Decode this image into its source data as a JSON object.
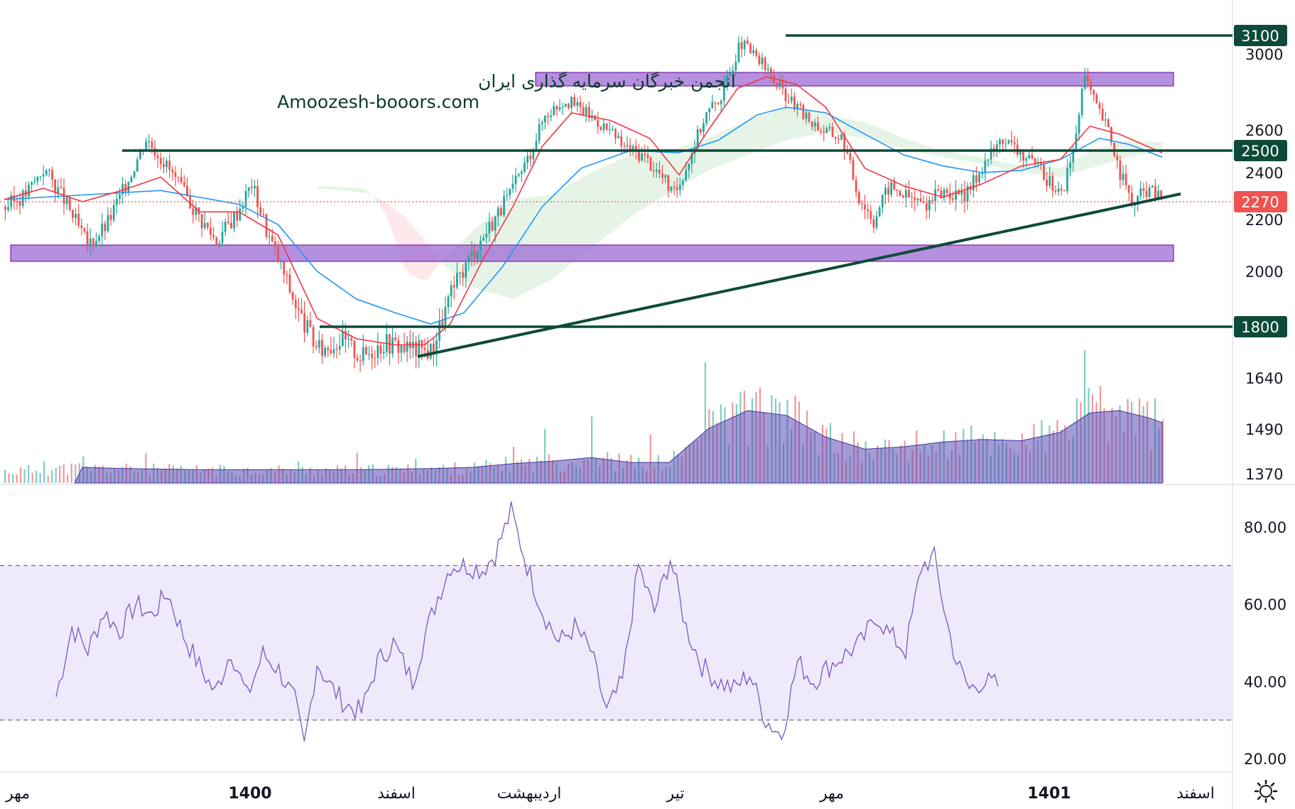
{
  "watermark": {
    "line1": "انجمن خبرگان سرمایه گذاری ایران",
    "line2": "Amoozesh-booors.com"
  },
  "colors": {
    "bull": "#26a69a",
    "bear": "#ef5350",
    "ema_fast": "#f23645",
    "ema_slow": "#2196f3",
    "level_line": "#0d4a3a",
    "zone": "#9c6ad6",
    "rsi_line": "#7e57c2",
    "rsi_band": "#efeafb",
    "volume_ma": "#5b4bb7"
  },
  "chart_data": [
    {
      "type": "candlestick",
      "title": "",
      "price_axis_ticks": [
        3000,
        2600,
        2400,
        2200,
        2000,
        1640,
        1490,
        1370
      ],
      "highlighted_levels": [
        {
          "value": 3100,
          "label": "3100"
        },
        {
          "value": 2500,
          "label": "2500"
        },
        {
          "value": 1800,
          "label": "1800"
        }
      ],
      "current_price": {
        "value": 2270,
        "label": "2270"
      },
      "support_resistance_zones": [
        {
          "low": 2860,
          "high": 2890
        },
        {
          "low": 2050,
          "high": 2080
        }
      ],
      "trendline": {
        "start": {
          "time": "late Bahman 1400",
          "value": 1720
        },
        "end": {
          "time": "Bahman 1401",
          "value": 2300
        }
      },
      "x_ticks": [
        "مهر",
        "1400",
        "اسفند",
        "اردیبهشت",
        "تیر",
        "مهر",
        "1401",
        "اسفند"
      ],
      "price_path": [
        [
          0,
          2250
        ],
        [
          10,
          2300
        ],
        [
          20,
          2420
        ],
        [
          30,
          2280
        ],
        [
          42,
          2100
        ],
        [
          52,
          2180
        ],
        [
          62,
          2350
        ],
        [
          72,
          2560
        ],
        [
          82,
          2440
        ],
        [
          92,
          2300
        ],
        [
          100,
          2200
        ],
        [
          108,
          2120
        ],
        [
          118,
          2220
        ],
        [
          126,
          2350
        ],
        [
          134,
          2150
        ],
        [
          142,
          2000
        ],
        [
          150,
          1850
        ],
        [
          160,
          1720
        ],
        [
          172,
          1760
        ],
        [
          182,
          1700
        ],
        [
          194,
          1750
        ],
        [
          205,
          1730
        ],
        [
          218,
          1720
        ],
        [
          228,
          1920
        ],
        [
          238,
          2060
        ],
        [
          248,
          2180
        ],
        [
          258,
          2300
        ],
        [
          268,
          2480
        ],
        [
          276,
          2680
        ],
        [
          286,
          2760
        ],
        [
          296,
          2700
        ],
        [
          306,
          2620
        ],
        [
          316,
          2520
        ],
        [
          326,
          2480
        ],
        [
          336,
          2380
        ],
        [
          342,
          2300
        ],
        [
          350,
          2470
        ],
        [
          358,
          2680
        ],
        [
          366,
          2780
        ],
        [
          376,
          3060
        ],
        [
          386,
          2960
        ],
        [
          396,
          2820
        ],
        [
          408,
          2680
        ],
        [
          418,
          2600
        ],
        [
          428,
          2560
        ],
        [
          436,
          2300
        ],
        [
          444,
          2200
        ],
        [
          452,
          2340
        ],
        [
          460,
          2300
        ],
        [
          470,
          2260
        ],
        [
          480,
          2320
        ],
        [
          490,
          2280
        ],
        [
          500,
          2440
        ],
        [
          510,
          2560
        ],
        [
          520,
          2480
        ],
        [
          530,
          2400
        ],
        [
          540,
          2300
        ],
        [
          546,
          2500
        ],
        [
          552,
          2880
        ],
        [
          558,
          2720
        ],
        [
          564,
          2600
        ],
        [
          570,
          2400
        ],
        [
          576,
          2260
        ],
        [
          584,
          2330
        ],
        [
          592,
          2280
        ]
      ],
      "ema_fast": [
        [
          0,
          2280
        ],
        [
          20,
          2330
        ],
        [
          40,
          2270
        ],
        [
          60,
          2320
        ],
        [
          80,
          2380
        ],
        [
          100,
          2230
        ],
        [
          120,
          2230
        ],
        [
          140,
          2140
        ],
        [
          160,
          1830
        ],
        [
          180,
          1760
        ],
        [
          200,
          1740
        ],
        [
          215,
          1740
        ],
        [
          228,
          1810
        ],
        [
          245,
          2050
        ],
        [
          260,
          2250
        ],
        [
          275,
          2520
        ],
        [
          290,
          2690
        ],
        [
          310,
          2650
        ],
        [
          330,
          2560
        ],
        [
          345,
          2390
        ],
        [
          360,
          2600
        ],
        [
          375,
          2820
        ],
        [
          390,
          2880
        ],
        [
          405,
          2840
        ],
        [
          420,
          2720
        ],
        [
          440,
          2420
        ],
        [
          460,
          2340
        ],
        [
          480,
          2290
        ],
        [
          500,
          2350
        ],
        [
          520,
          2430
        ],
        [
          540,
          2460
        ],
        [
          555,
          2620
        ],
        [
          570,
          2580
        ],
        [
          592,
          2490
        ]
      ],
      "ema_slow": [
        [
          0,
          2280
        ],
        [
          40,
          2300
        ],
        [
          80,
          2320
        ],
        [
          120,
          2260
        ],
        [
          140,
          2180
        ],
        [
          160,
          2000
        ],
        [
          180,
          1900
        ],
        [
          200,
          1850
        ],
        [
          218,
          1810
        ],
        [
          235,
          1850
        ],
        [
          255,
          2020
        ],
        [
          275,
          2250
        ],
        [
          295,
          2420
        ],
        [
          320,
          2500
        ],
        [
          345,
          2490
        ],
        [
          365,
          2550
        ],
        [
          385,
          2680
        ],
        [
          400,
          2720
        ],
        [
          420,
          2690
        ],
        [
          440,
          2580
        ],
        [
          460,
          2480
        ],
        [
          480,
          2430
        ],
        [
          500,
          2400
        ],
        [
          520,
          2410
        ],
        [
          540,
          2460
        ],
        [
          560,
          2560
        ],
        [
          575,
          2530
        ],
        [
          592,
          2470
        ]
      ],
      "ichimoku_span_a": [
        [
          160,
          2340
        ],
        [
          185,
          2330
        ],
        [
          195,
          2230
        ],
        [
          205,
          2000
        ],
        [
          215,
          1960
        ],
        [
          225,
          2050
        ],
        [
          240,
          2160
        ],
        [
          260,
          2280
        ],
        [
          280,
          2300
        ],
        [
          300,
          2400
        ],
        [
          320,
          2480
        ],
        [
          340,
          2500
        ],
        [
          360,
          2560
        ],
        [
          380,
          2650
        ],
        [
          400,
          2720
        ],
        [
          420,
          2680
        ],
        [
          440,
          2640
        ],
        [
          460,
          2560
        ],
        [
          480,
          2500
        ],
        [
          500,
          2470
        ],
        [
          520,
          2430
        ],
        [
          540,
          2420
        ],
        [
          555,
          2500
        ],
        [
          575,
          2550
        ],
        [
          592,
          2540
        ]
      ],
      "ichimoku_span_b": [
        [
          160,
          2330
        ],
        [
          185,
          2310
        ],
        [
          195,
          2270
        ],
        [
          205,
          2210
        ],
        [
          215,
          2120
        ],
        [
          225,
          2020
        ],
        [
          240,
          1940
        ],
        [
          260,
          1900
        ],
        [
          280,
          1970
        ],
        [
          300,
          2090
        ],
        [
          320,
          2210
        ],
        [
          340,
          2310
        ],
        [
          360,
          2410
        ],
        [
          380,
          2480
        ],
        [
          400,
          2550
        ],
        [
          420,
          2590
        ],
        [
          440,
          2560
        ],
        [
          460,
          2510
        ],
        [
          480,
          2470
        ],
        [
          500,
          2440
        ],
        [
          520,
          2400
        ],
        [
          540,
          2380
        ],
        [
          555,
          2420
        ],
        [
          575,
          2470
        ],
        [
          592,
          2500
        ]
      ],
      "volume_ma": [
        [
          0,
          0.1
        ],
        [
          40,
          0.13
        ],
        [
          60,
          0.12
        ],
        [
          100,
          0.11
        ],
        [
          140,
          0.11
        ],
        [
          180,
          0.11
        ],
        [
          220,
          0.12
        ],
        [
          240,
          0.13
        ],
        [
          260,
          0.16
        ],
        [
          280,
          0.18
        ],
        [
          300,
          0.21
        ],
        [
          320,
          0.17
        ],
        [
          340,
          0.17
        ],
        [
          360,
          0.45
        ],
        [
          380,
          0.6
        ],
        [
          400,
          0.56
        ],
        [
          420,
          0.38
        ],
        [
          440,
          0.28
        ],
        [
          460,
          0.3
        ],
        [
          480,
          0.34
        ],
        [
          500,
          0.36
        ],
        [
          520,
          0.35
        ],
        [
          540,
          0.42
        ],
        [
          555,
          0.58
        ],
        [
          570,
          0.6
        ],
        [
          585,
          0.54
        ],
        [
          592,
          0.5
        ]
      ],
      "volume_spikes": [
        [
          20,
          0.18
        ],
        [
          40,
          0.22
        ],
        [
          72,
          0.25
        ],
        [
          104,
          0.12
        ],
        [
          150,
          0.18
        ],
        [
          180,
          0.25
        ],
        [
          210,
          0.2
        ],
        [
          260,
          0.3
        ],
        [
          276,
          0.45
        ],
        [
          300,
          0.55
        ],
        [
          330,
          0.4
        ],
        [
          358,
          1.0
        ],
        [
          366,
          0.65
        ],
        [
          376,
          0.75
        ],
        [
          400,
          0.5
        ],
        [
          420,
          0.45
        ],
        [
          460,
          0.35
        ],
        [
          480,
          0.42
        ],
        [
          500,
          0.4
        ],
        [
          520,
          0.4
        ],
        [
          548,
          0.7
        ],
        [
          552,
          1.1
        ],
        [
          562,
          0.5
        ],
        [
          576,
          0.3
        ]
      ]
    },
    {
      "type": "line",
      "title": "",
      "series": [
        {
          "values_ref": "rsi"
        }
      ],
      "ylim": [
        15,
        90
      ],
      "y_ticks": [
        80.0,
        60.0,
        40.0,
        20.0
      ],
      "y_tick_labels": [
        "80.00",
        "60.00",
        "40.00",
        "20.00"
      ],
      "band": {
        "low": 30,
        "high": 70
      },
      "rsi": [
        [
          0,
          36
        ],
        [
          10,
          54
        ],
        [
          20,
          48
        ],
        [
          30,
          58
        ],
        [
          40,
          53
        ],
        [
          50,
          60
        ],
        [
          60,
          57
        ],
        [
          70,
          63
        ],
        [
          80,
          52
        ],
        [
          90,
          44
        ],
        [
          100,
          37
        ],
        [
          110,
          48
        ],
        [
          120,
          36
        ],
        [
          130,
          47
        ],
        [
          140,
          43
        ],
        [
          150,
          35
        ],
        [
          156,
          23
        ],
        [
          164,
          45
        ],
        [
          172,
          39
        ],
        [
          182,
          34
        ],
        [
          192,
          32
        ],
        [
          202,
          45
        ],
        [
          212,
          50
        ],
        [
          224,
          40
        ],
        [
          232,
          52
        ],
        [
          240,
          62
        ],
        [
          248,
          70
        ],
        [
          258,
          70
        ],
        [
          268,
          69
        ],
        [
          276,
          73
        ],
        [
          286,
          84
        ],
        [
          296,
          70
        ],
        [
          306,
          58
        ],
        [
          316,
          50
        ],
        [
          326,
          54
        ],
        [
          336,
          48
        ],
        [
          346,
          32
        ],
        [
          356,
          40
        ],
        [
          366,
          70
        ],
        [
          376,
          58
        ],
        [
          386,
          72
        ],
        [
          396,
          54
        ],
        [
          406,
          44
        ],
        [
          416,
          40
        ],
        [
          426,
          38
        ],
        [
          436,
          42
        ],
        [
          446,
          30
        ],
        [
          456,
          26
        ],
        [
          466,
          45
        ],
        [
          476,
          40
        ],
        [
          486,
          44
        ],
        [
          496,
          47
        ],
        [
          506,
          50
        ],
        [
          516,
          57
        ],
        [
          524,
          52
        ],
        [
          534,
          48
        ],
        [
          544,
          70
        ],
        [
          552,
          72
        ],
        [
          560,
          55
        ],
        [
          566,
          45
        ],
        [
          574,
          38
        ],
        [
          582,
          40
        ],
        [
          592,
          39
        ]
      ]
    }
  ]
}
